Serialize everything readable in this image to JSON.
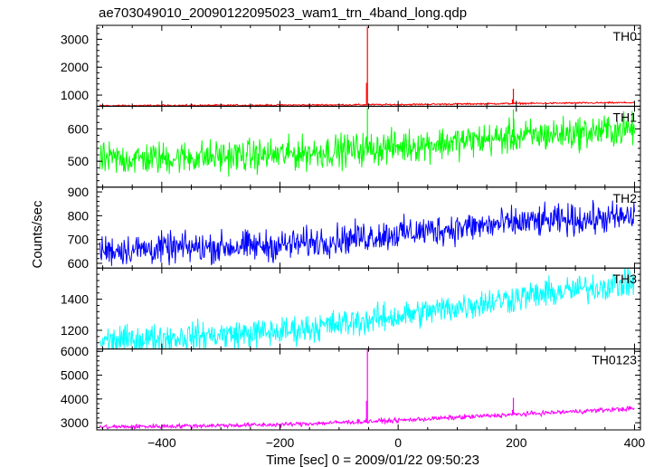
{
  "chart_data": {
    "type": "line",
    "title": "ae703049010_20090122095023_wam1_trn_4band_long.qdp",
    "xlabel": "Time [sec] 0 = 2009/01/22 09:50:23",
    "ylabel": "Counts/sec",
    "xlim": [
      -510,
      410
    ],
    "x_ticks": [
      -400,
      -200,
      0,
      200,
      400
    ],
    "grid": false,
    "panels": [
      {
        "name": "TH0",
        "color": "#ff0000",
        "ylim": [
          600,
          3500
        ],
        "y_ticks": [
          1000,
          2000,
          3000
        ],
        "trend": [
          [
            -500,
            620
          ],
          [
            -200,
            640
          ],
          [
            0,
            660
          ],
          [
            200,
            700
          ],
          [
            400,
            730
          ]
        ],
        "noise": 35,
        "spikes": [
          {
            "x": -52,
            "peak": 3450
          },
          {
            "x": 195,
            "peak": 1230
          }
        ]
      },
      {
        "name": "TH1",
        "color": "#00ff00",
        "ylim": [
          420,
          670
        ],
        "y_ticks": [
          500,
          600
        ],
        "trend": [
          [
            -500,
            505
          ],
          [
            -200,
            520
          ],
          [
            0,
            545
          ],
          [
            200,
            575
          ],
          [
            400,
            600
          ]
        ],
        "noise": 55,
        "spikes": [
          {
            "x": -52,
            "peak": 665
          },
          {
            "x": 195,
            "peak": 660
          }
        ]
      },
      {
        "name": "TH2",
        "color": "#0000ff",
        "ylim": [
          580,
          920
        ],
        "y_ticks": [
          600,
          700,
          800,
          900
        ],
        "trend": [
          [
            -500,
            655
          ],
          [
            -200,
            675
          ],
          [
            0,
            725
          ],
          [
            200,
            770
          ],
          [
            400,
            795
          ]
        ],
        "noise": 70,
        "spikes": []
      },
      {
        "name": "TH3",
        "color": "#00ffff",
        "ylim": [
          1080,
          1600
        ],
        "y_ticks": [
          1200,
          1400
        ],
        "trend": [
          [
            -500,
            1130
          ],
          [
            -200,
            1190
          ],
          [
            0,
            1290
          ],
          [
            200,
            1410
          ],
          [
            400,
            1510
          ]
        ],
        "noise": 100,
        "spikes": []
      },
      {
        "name": "TH0123",
        "color": "#ff00ff",
        "ylim": [
          2700,
          6100
        ],
        "y_ticks": [
          3000,
          4000,
          5000,
          6000
        ],
        "trend": [
          [
            -500,
            2820
          ],
          [
            -200,
            2920
          ],
          [
            0,
            3100
          ],
          [
            200,
            3350
          ],
          [
            400,
            3600
          ]
        ],
        "noise": 110,
        "spikes": [
          {
            "x": -52,
            "peak": 6150
          },
          {
            "x": 195,
            "peak": 4050
          }
        ]
      }
    ]
  }
}
